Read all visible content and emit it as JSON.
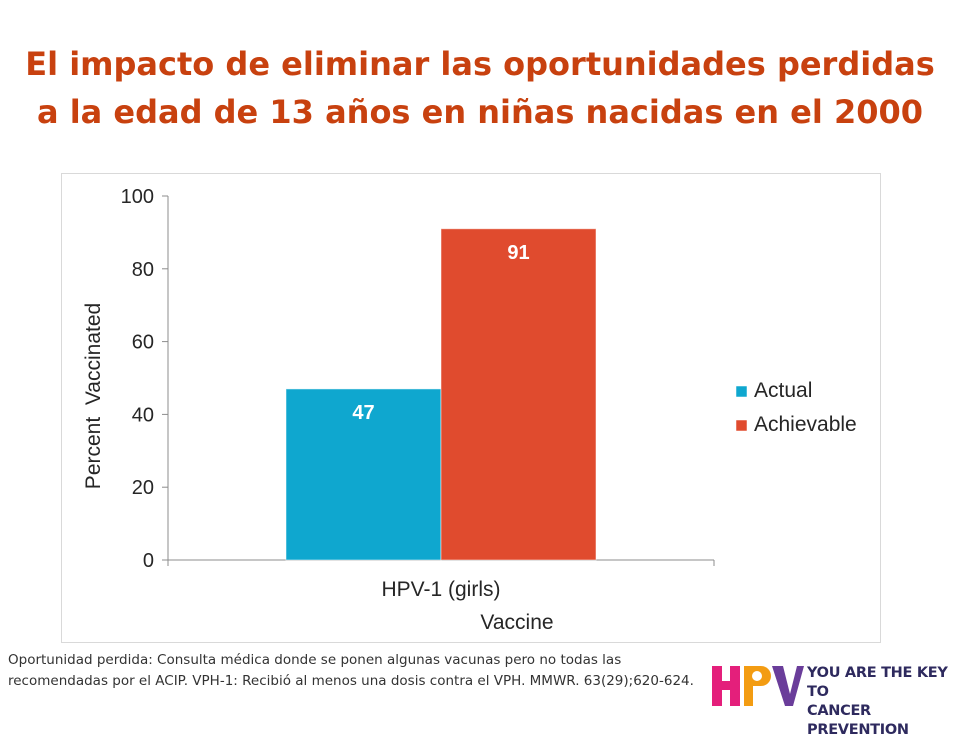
{
  "slide": {
    "title_line1": "El impacto de eliminar las oportunidades perdidas",
    "title_line2": "a la edad de 13 años en niñas nacidas en el 2000"
  },
  "chart_data": {
    "type": "bar",
    "categories": [
      "HPV-1 (girls)"
    ],
    "series": [
      {
        "name": "Actual",
        "values": [
          47
        ],
        "color": "#0fa7cf"
      },
      {
        "name": "Achievable",
        "values": [
          91
        ],
        "color": "#e04b2e"
      }
    ],
    "xlabel": "Vaccine",
    "ylabel": "Percent  Vaccinated",
    "ylim": [
      0,
      100
    ],
    "yticks": [
      0,
      20,
      40,
      60,
      80,
      100
    ],
    "data_labels": [
      "47",
      "91"
    ],
    "legend_position": "right",
    "grid": false
  },
  "footnote": "Oportunidad perdida: Consulta médica donde se ponen algunas vacunas pero no todas las recomendadas por el ACIP. VPH-1: Recibió al menos una dosis contra el VPH. MMWR. 63(29);620-624.",
  "logo": {
    "mark": "HPV",
    "tagline_line1": "YOU ARE THE KEY TO",
    "tagline_line2": "CANCER PREVENTION"
  }
}
